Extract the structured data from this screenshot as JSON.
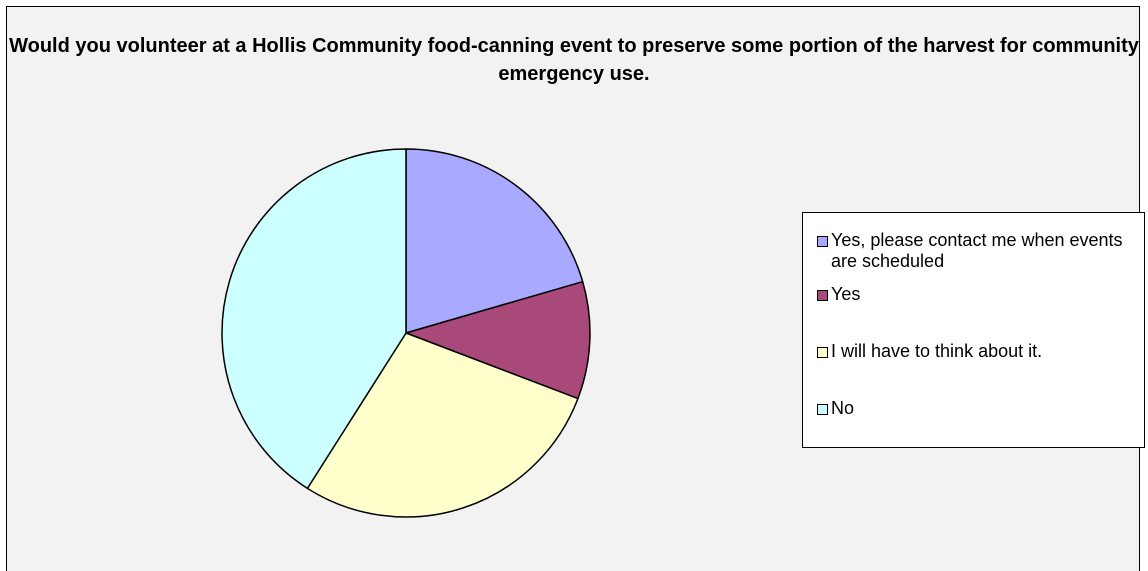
{
  "chart_data": {
    "type": "pie",
    "title": "Would you volunteer at a Hollis Community food-canning event to preserve some portion of the harvest for community emergency use.",
    "legend_position": "right",
    "slices": [
      {
        "label": "Yes, please contact me when events are scheduled",
        "value": 20.5,
        "color": "#a9a9ff"
      },
      {
        "label": "Yes",
        "value": 10.3,
        "color": "#a8497a"
      },
      {
        "label": "I will have to think about it.",
        "value": 28.2,
        "color": "#ffffcc"
      },
      {
        "label": "No",
        "value": 41.0,
        "color": "#ccffff"
      }
    ]
  }
}
